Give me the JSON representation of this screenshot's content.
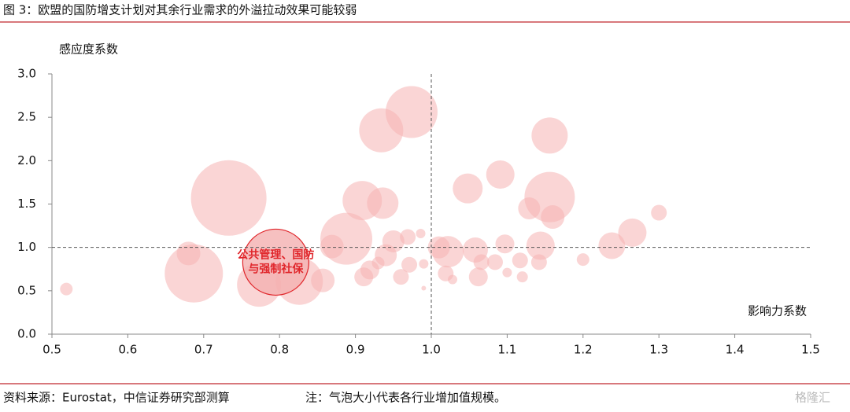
{
  "header": {
    "title": "图 3：欧盟的国防增支计划对其余行业需求的外溢拉动效果可能较弱"
  },
  "footer": {
    "source": "资料来源：Eurostat，中信证券研究部测算",
    "note": "注：气泡大小代表各行业增加值规模。",
    "watermark": "格隆汇"
  },
  "chart_data": {
    "type": "bubble",
    "y_label": "感应度系数",
    "x_label": "影响力系数",
    "xlim": [
      0.5,
      1.5
    ],
    "ylim": [
      0,
      3.0
    ],
    "xticks": [
      0.5,
      0.6,
      0.7,
      0.8,
      0.9,
      {
        "value": 1,
        "label": "1.0"
      },
      1.1,
      1.2,
      1.3,
      1.4,
      1.5
    ],
    "yticks": [
      {
        "value": 0,
        "label": "0.0"
      },
      0.5,
      {
        "value": 1,
        "label": "1.0"
      },
      1.5,
      {
        "value": 2,
        "label": "2.0"
      },
      2.5,
      {
        "value": 3,
        "label": "3.0"
      }
    ],
    "reference_x": 1,
    "reference_y": 1,
    "series": [
      {
        "color": "#f6b3b3",
        "x": [
          0.519,
          0.733,
          0.687,
          0.68,
          0.773,
          0.826,
          0.857,
          0.869,
          0.888,
          0.909,
          0.936,
          0.934,
          0.974,
          0.911,
          0.919,
          0.94,
          0.95,
          0.969,
          0.971,
          0.986,
          0.96,
          0.93,
          0.99,
          1.022,
          1.01,
          1.019,
          1.028,
          0.99,
          1.048,
          1.091,
          1.156,
          1.156,
          1.16,
          1.129,
          1.058,
          1.062,
          1.066,
          1.097,
          1.084,
          1.144,
          1.142,
          1.117,
          1.12,
          1.1,
          1.2,
          1.238,
          1.265,
          1.3
        ],
        "values": [
          0.52,
          1.57,
          0.7,
          0.93,
          0.57,
          0.61,
          0.62,
          1.01,
          1.1,
          1.54,
          1.51,
          2.35,
          2.56,
          0.66,
          0.74,
          0.91,
          1.07,
          1.12,
          0.8,
          1.16,
          0.66,
          0.82,
          0.81,
          0.95,
          1.0,
          0.7,
          0.63,
          0.53,
          1.68,
          1.84,
          2.29,
          1.58,
          1.35,
          1.45,
          0.97,
          0.66,
          0.83,
          1.04,
          0.83,
          1.02,
          0.83,
          0.85,
          0.66,
          0.71,
          0.86,
          1.02,
          1.17,
          1.4
        ],
        "sizes": [
          8,
          48,
          37,
          15,
          28,
          30,
          15,
          15,
          33,
          25,
          20,
          28,
          33,
          12,
          12,
          14,
          14,
          10,
          10,
          6,
          10,
          8,
          6,
          20,
          14,
          10,
          6,
          3,
          19,
          18,
          23,
          32,
          15,
          14,
          16,
          12,
          10,
          12,
          10,
          18,
          10,
          10,
          7,
          6,
          8,
          17,
          18,
          10
        ]
      }
    ],
    "highlight": {
      "lines": [
        "公共管理、国防",
        "与强制社保"
      ],
      "x": 0.795,
      "y": 0.83,
      "size": 42,
      "color": "#e0262b"
    }
  }
}
